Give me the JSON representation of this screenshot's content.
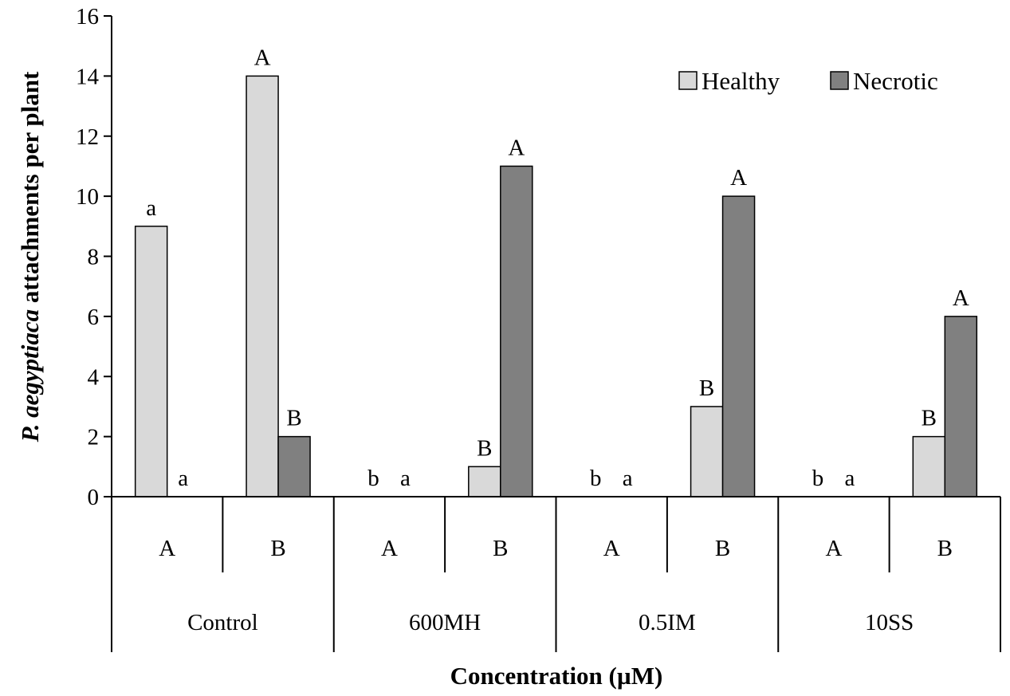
{
  "chart_data": {
    "type": "bar",
    "ylabel_italic": "P. aegyptiaca",
    "ylabel_rest": " attachments per plant",
    "xlabel": "Concentration (µM)",
    "ylim": [
      0,
      16
    ],
    "yticks": [
      0,
      2,
      4,
      6,
      8,
      10,
      12,
      14,
      16
    ],
    "groups": [
      "Control",
      "600MH",
      "0.5IM",
      "10SS"
    ],
    "categories": [
      "A",
      "B",
      "A",
      "B",
      "A",
      "B",
      "A",
      "B"
    ],
    "series": [
      {
        "name": "Healthy",
        "color": "#d9d9d9",
        "values": [
          9,
          14,
          0,
          1,
          0,
          3,
          0,
          2
        ],
        "labels": [
          "a",
          "A",
          "b",
          "B",
          "b",
          "B",
          "b",
          "B"
        ]
      },
      {
        "name": "Necrotic",
        "color": "#808080",
        "values": [
          0,
          2,
          0,
          11,
          0,
          10,
          0,
          6
        ],
        "labels": [
          "a",
          "B",
          "a",
          "A",
          "a",
          "A",
          "a",
          "A"
        ]
      }
    ],
    "legend_position": "top-right"
  }
}
